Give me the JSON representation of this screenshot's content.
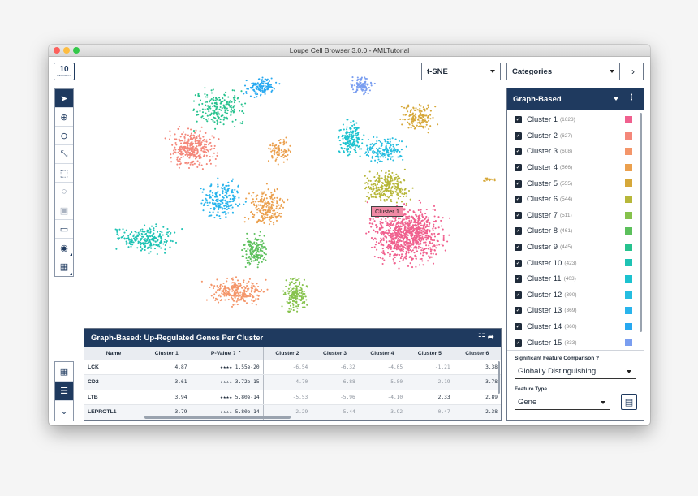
{
  "window": {
    "title": "Loupe Cell Browser 3.0.0 - AMLTutorial"
  },
  "logo": {
    "big": "10",
    "small": "GENOMICS"
  },
  "projection": {
    "label": "t-SNE"
  },
  "category": {
    "label": "Categories"
  },
  "panel": {
    "title": "Graph-Based",
    "clusters": [
      {
        "label": "Cluster 1",
        "count": "(1623)",
        "color": "#f0608e"
      },
      {
        "label": "Cluster 2",
        "count": "(627)",
        "color": "#f4877a"
      },
      {
        "label": "Cluster 3",
        "count": "(608)",
        "color": "#f4966a"
      },
      {
        "label": "Cluster 4",
        "count": "(566)",
        "color": "#eba04e"
      },
      {
        "label": "Cluster 5",
        "count": "(555)",
        "color": "#d6a83a"
      },
      {
        "label": "Cluster 6",
        "count": "(544)",
        "color": "#b7b73a"
      },
      {
        "label": "Cluster 7",
        "count": "(511)",
        "color": "#86c24c"
      },
      {
        "label": "Cluster 8",
        "count": "(461)",
        "color": "#5cc05c"
      },
      {
        "label": "Cluster 9",
        "count": "(445)",
        "color": "#27c28e"
      },
      {
        "label": "Cluster 10",
        "count": "(423)",
        "color": "#1fc3b4"
      },
      {
        "label": "Cluster 11",
        "count": "(403)",
        "color": "#1cc2cf"
      },
      {
        "label": "Cluster 12",
        "count": "(390)",
        "color": "#25bde0"
      },
      {
        "label": "Cluster 13",
        "count": "(369)",
        "color": "#29b4ec"
      },
      {
        "label": "Cluster 14",
        "count": "(360)",
        "color": "#27a8f0"
      },
      {
        "label": "Cluster 15",
        "count": "(333)",
        "color": "#7a9ef0"
      }
    ],
    "comparison_label": "Significant Feature Comparison",
    "comparison_value": "Globally Distinguishing",
    "feature_type_label": "Feature Type",
    "feature_type_value": "Gene"
  },
  "table": {
    "title": "Graph-Based: Up-Regulated Genes Per Cluster",
    "headers": [
      "Name",
      "Cluster 1",
      "P-Value",
      "Cluster 2",
      "Cluster 3",
      "Cluster 4",
      "Cluster 5",
      "Cluster 6"
    ],
    "rows": [
      {
        "name": "LCK",
        "c1": "4.87",
        "p": "★★★★ 1.55e-20",
        "c2": "-6.54",
        "c3": "-6.32",
        "c4": "-4.05",
        "c5": "-1.21",
        "c6": "3.38"
      },
      {
        "name": "CD2",
        "c1": "3.61",
        "p": "★★★★ 3.72e-15",
        "c2": "-4.70",
        "c3": "-6.88",
        "c4": "-5.80",
        "c5": "-2.19",
        "c6": "3.78"
      },
      {
        "name": "LTB",
        "c1": "3.94",
        "p": "★★★★ 5.80e-14",
        "c2": "-5.53",
        "c3": "-5.96",
        "c4": "-4.10",
        "c5": "2.33",
        "c6": "2.89"
      },
      {
        "name": "LEPROTL1",
        "c1": "3.79",
        "p": "★★★★ 5.80e-14",
        "c2": "-2.29",
        "c3": "-5.44",
        "c4": "-3.92",
        "c5": "-0.47",
        "c6": "2.38"
      }
    ]
  },
  "tooltip": {
    "label": "Cluster 1"
  },
  "icons": [
    "pointer-icon",
    "zoom-in-icon",
    "zoom-out-icon",
    "expand-icon",
    "box-select-icon",
    "lasso-icon",
    "save-icon",
    "folder-icon",
    "camera-icon",
    "grid-icon",
    "heatmap-icon",
    "list-icon",
    "chevron-down-icon",
    "filter-icon",
    "share-icon",
    "calculator-icon",
    "help-icon",
    "kebab-icon"
  ]
}
